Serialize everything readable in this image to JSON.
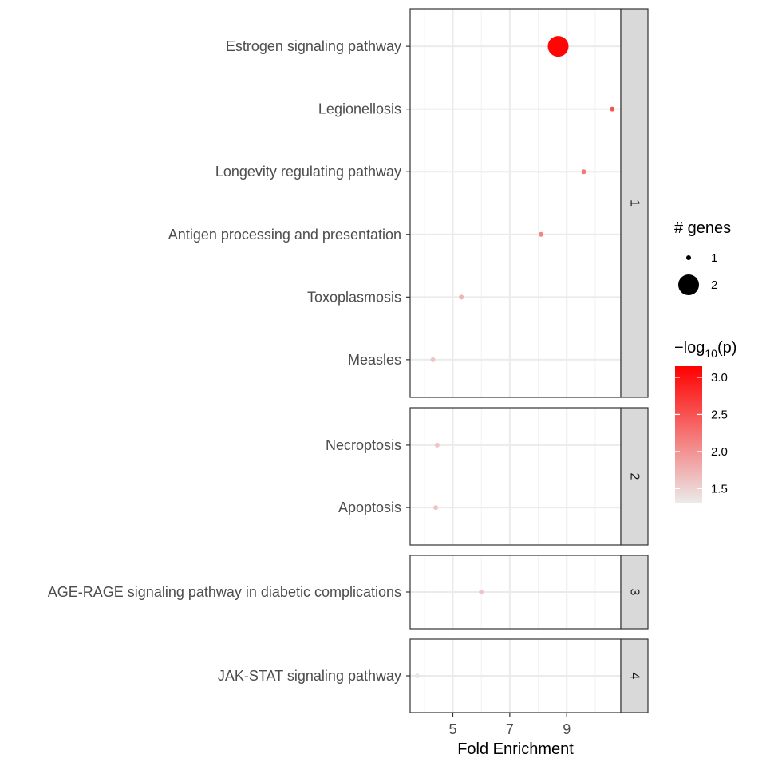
{
  "chart_data": {
    "type": "scatter",
    "xlabel": "Fold Enrichment",
    "x_ticks": [
      5,
      7,
      9
    ],
    "xlim": [
      3.5,
      10.9
    ],
    "grid": true,
    "legend_position": "right",
    "facets": [
      {
        "label": "1",
        "rows": [
          {
            "pathway": "Estrogen signaling pathway",
            "fold_enrichment": 8.7,
            "n_genes": 2,
            "neg_log10_p": 3.1
          },
          {
            "pathway": "Legionellosis",
            "fold_enrichment": 10.6,
            "n_genes": 1,
            "neg_log10_p": 2.5
          },
          {
            "pathway": "Longevity regulating pathway",
            "fold_enrichment": 9.6,
            "n_genes": 1,
            "neg_log10_p": 2.2
          },
          {
            "pathway": "Antigen processing and presentation",
            "fold_enrichment": 8.1,
            "n_genes": 1,
            "neg_log10_p": 2.1
          },
          {
            "pathway": "Toxoplasmosis",
            "fold_enrichment": 5.3,
            "n_genes": 1,
            "neg_log10_p": 1.75
          },
          {
            "pathway": "Measles",
            "fold_enrichment": 4.3,
            "n_genes": 1,
            "neg_log10_p": 1.6
          }
        ]
      },
      {
        "label": "2",
        "rows": [
          {
            "pathway": "Necroptosis",
            "fold_enrichment": 4.45,
            "n_genes": 1,
            "neg_log10_p": 1.6
          },
          {
            "pathway": "Apoptosis",
            "fold_enrichment": 4.4,
            "n_genes": 1,
            "neg_log10_p": 1.6
          }
        ]
      },
      {
        "label": "3",
        "rows": [
          {
            "pathway": "AGE-RAGE signaling pathway in diabetic complications",
            "fold_enrichment": 6.0,
            "n_genes": 1,
            "neg_log10_p": 1.6
          }
        ]
      },
      {
        "label": "4",
        "rows": [
          {
            "pathway": "JAK-STAT signaling pathway",
            "fold_enrichment": 3.75,
            "n_genes": 1,
            "neg_log10_p": 1.35
          }
        ]
      }
    ],
    "size_legend": {
      "title": "# genes",
      "entries": [
        {
          "label": "1",
          "value": 1
        },
        {
          "label": "2",
          "value": 2
        }
      ]
    },
    "color_legend": {
      "title": "−log",
      "title_subscript": "10",
      "title_suffix": "(p)",
      "min": 1.3,
      "max": 3.15,
      "low_color": "#ebebeb",
      "high_color": "#ff0000",
      "ticks": [
        {
          "value": 1.5,
          "label": "1.5"
        },
        {
          "value": 2.0,
          "label": "2.0"
        },
        {
          "value": 2.5,
          "label": "2.5"
        },
        {
          "value": 3.0,
          "label": "3.0"
        }
      ]
    }
  }
}
